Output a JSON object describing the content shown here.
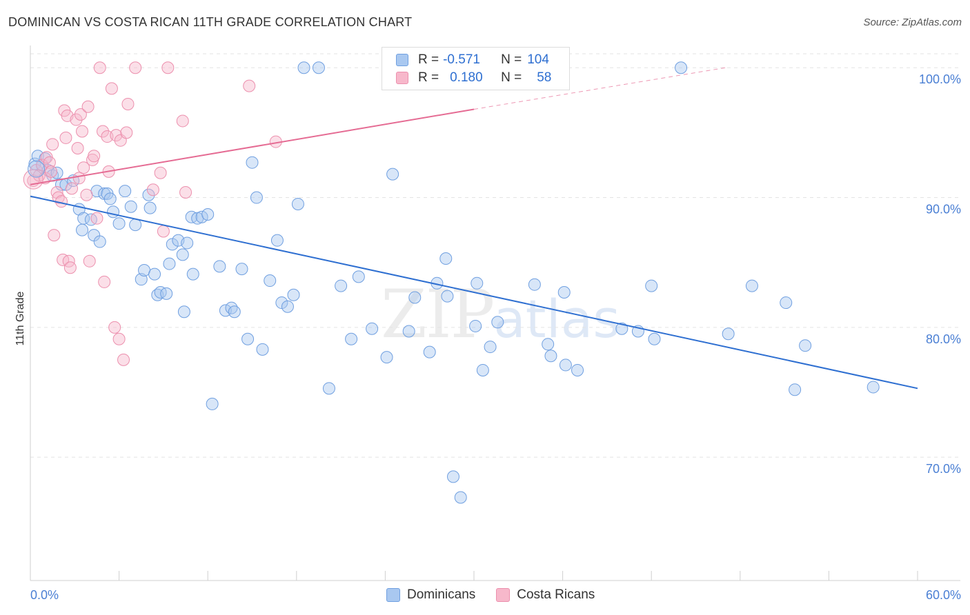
{
  "title": "DOMINICAN VS COSTA RICAN 11TH GRADE CORRELATION CHART",
  "source": "Source: ZipAtlas.com",
  "watermark": {
    "zip": "ZIP",
    "atlas": "atlas"
  },
  "legend": {
    "rows": [
      {
        "r_label": "R =",
        "r_value": "-0.571",
        "n_label": "N =",
        "n_value": "104",
        "color": "#a9c8f0"
      },
      {
        "r_label": "R =",
        "r_value": "0.180",
        "n_label": "N =",
        "n_value": "58",
        "color": "#f7b8cb"
      }
    ]
  },
  "bottom_legend": [
    {
      "label": "Dominicans",
      "color": "#a9c8f0"
    },
    {
      "label": "Costa Ricans",
      "color": "#f7b8cb"
    }
  ],
  "chart_data": {
    "type": "scatter",
    "title": "DOMINICAN VS COSTA RICAN 11TH GRADE CORRELATION CHART",
    "xlabel": "",
    "ylabel": "11th Grade",
    "xlim": [
      0,
      60
    ],
    "ylim": [
      60.5,
      101.5
    ],
    "x_tick_labels": [
      "0.0%",
      "60.0%"
    ],
    "y_ticks": [
      70,
      80,
      90,
      100
    ],
    "y_tick_labels": [
      "70.0%",
      "80.0%",
      "90.0%",
      "100.0%"
    ],
    "grid": true,
    "series": [
      {
        "name": "Dominicans",
        "color": "#a9c8f0",
        "stroke": "#6f9fe0",
        "trend_color": "#2e6fd1",
        "trend": {
          "x0": 0,
          "y0": 90.1,
          "x1": 60,
          "y1": 75.3
        },
        "points": [
          [
            0.3,
            92.6
          ],
          [
            0.5,
            93.2
          ],
          [
            0.8,
            92.5
          ],
          [
            1.0,
            93.0
          ],
          [
            1.2,
            92.1
          ],
          [
            1.5,
            91.7
          ],
          [
            1.8,
            91.9
          ],
          [
            2.1,
            91.0
          ],
          [
            2.4,
            91.0
          ],
          [
            2.9,
            91.3
          ],
          [
            3.3,
            89.1
          ],
          [
            3.5,
            87.5
          ],
          [
            3.6,
            88.4
          ],
          [
            4.1,
            88.3
          ],
          [
            4.3,
            87.1
          ],
          [
            4.5,
            90.5
          ],
          [
            4.7,
            86.6
          ],
          [
            5.0,
            90.3
          ],
          [
            5.2,
            90.3
          ],
          [
            5.4,
            89.9
          ],
          [
            5.6,
            88.9
          ],
          [
            6.0,
            88.0
          ],
          [
            6.4,
            90.5
          ],
          [
            6.8,
            89.3
          ],
          [
            7.1,
            87.9
          ],
          [
            7.5,
            83.7
          ],
          [
            7.7,
            84.4
          ],
          [
            8.0,
            90.2
          ],
          [
            8.1,
            89.2
          ],
          [
            8.4,
            84.1
          ],
          [
            8.6,
            82.5
          ],
          [
            8.8,
            82.7
          ],
          [
            9.2,
            82.6
          ],
          [
            9.4,
            84.9
          ],
          [
            9.6,
            86.4
          ],
          [
            10.0,
            86.7
          ],
          [
            10.3,
            85.6
          ],
          [
            10.4,
            81.2
          ],
          [
            10.6,
            86.5
          ],
          [
            10.9,
            88.5
          ],
          [
            11.0,
            84.1
          ],
          [
            11.3,
            88.4
          ],
          [
            11.6,
            88.5
          ],
          [
            12.0,
            88.7
          ],
          [
            12.3,
            74.1
          ],
          [
            12.8,
            84.7
          ],
          [
            13.2,
            81.3
          ],
          [
            13.6,
            81.5
          ],
          [
            13.8,
            81.2
          ],
          [
            14.3,
            84.5
          ],
          [
            14.7,
            79.1
          ],
          [
            15.0,
            92.7
          ],
          [
            15.3,
            90.0
          ],
          [
            15.7,
            78.3
          ],
          [
            16.2,
            83.6
          ],
          [
            16.7,
            86.7
          ],
          [
            17.0,
            81.9
          ],
          [
            17.4,
            81.6
          ],
          [
            17.8,
            82.5
          ],
          [
            18.1,
            89.5
          ],
          [
            18.5,
            100.0
          ],
          [
            19.5,
            100.0
          ],
          [
            20.2,
            75.3
          ],
          [
            21.0,
            83.2
          ],
          [
            21.7,
            79.1
          ],
          [
            22.2,
            83.9
          ],
          [
            23.1,
            79.9
          ],
          [
            24.1,
            77.7
          ],
          [
            24.5,
            91.8
          ],
          [
            25.6,
            79.7
          ],
          [
            26.0,
            82.3
          ],
          [
            27.0,
            78.1
          ],
          [
            27.5,
            83.4
          ],
          [
            28.1,
            85.3
          ],
          [
            28.2,
            82.4
          ],
          [
            28.6,
            68.5
          ],
          [
            29.1,
            66.9
          ],
          [
            30.1,
            80.1
          ],
          [
            30.2,
            83.4
          ],
          [
            30.6,
            76.7
          ],
          [
            31.1,
            78.5
          ],
          [
            31.6,
            80.4
          ],
          [
            34.1,
            83.3
          ],
          [
            35.0,
            78.7
          ],
          [
            35.2,
            77.8
          ],
          [
            36.1,
            82.7
          ],
          [
            36.2,
            77.1
          ],
          [
            37.0,
            76.7
          ],
          [
            40.0,
            79.9
          ],
          [
            41.1,
            79.7
          ],
          [
            42.0,
            83.2
          ],
          [
            42.2,
            79.1
          ],
          [
            44.0,
            100.0
          ],
          [
            47.2,
            79.5
          ],
          [
            48.8,
            83.2
          ],
          [
            51.1,
            81.9
          ],
          [
            51.7,
            75.2
          ],
          [
            52.4,
            78.6
          ],
          [
            57.0,
            75.4
          ]
        ]
      },
      {
        "name": "Costa Ricans",
        "color": "#f7b8cb",
        "stroke": "#ec8fad",
        "trend_color": "#e56b93",
        "trend": {
          "x0": 0,
          "y0": 91.0,
          "x1": 30,
          "y1": 96.8
        },
        "trend_dashed": {
          "x0": 30,
          "y0": 96.8,
          "x1": 47,
          "y1": 100.0
        },
        "points": [
          [
            0.2,
            91.3
          ],
          [
            0.4,
            92.1
          ],
          [
            0.6,
            91.7
          ],
          [
            0.8,
            92.5
          ],
          [
            1.0,
            91.5
          ],
          [
            1.1,
            93.1
          ],
          [
            1.3,
            92.7
          ],
          [
            1.4,
            92.0
          ],
          [
            1.5,
            94.1
          ],
          [
            1.6,
            87.1
          ],
          [
            1.8,
            90.4
          ],
          [
            1.9,
            90.0
          ],
          [
            2.1,
            89.7
          ],
          [
            2.2,
            85.2
          ],
          [
            2.3,
            96.7
          ],
          [
            2.4,
            94.6
          ],
          [
            2.5,
            96.3
          ],
          [
            2.6,
            85.1
          ],
          [
            2.7,
            84.6
          ],
          [
            2.8,
            90.7
          ],
          [
            3.1,
            96.0
          ],
          [
            3.2,
            93.8
          ],
          [
            3.3,
            91.5
          ],
          [
            3.4,
            96.4
          ],
          [
            3.5,
            95.1
          ],
          [
            3.6,
            92.3
          ],
          [
            3.8,
            90.2
          ],
          [
            3.9,
            97.0
          ],
          [
            4.0,
            85.1
          ],
          [
            4.2,
            92.9
          ],
          [
            4.3,
            93.2
          ],
          [
            4.5,
            88.4
          ],
          [
            4.7,
            100.0
          ],
          [
            4.9,
            95.1
          ],
          [
            5.0,
            83.5
          ],
          [
            5.2,
            94.7
          ],
          [
            5.3,
            92.0
          ],
          [
            5.5,
            98.4
          ],
          [
            5.7,
            80.0
          ],
          [
            5.8,
            94.8
          ],
          [
            6.0,
            79.1
          ],
          [
            6.1,
            94.4
          ],
          [
            6.3,
            77.5
          ],
          [
            6.5,
            95.0
          ],
          [
            6.6,
            97.2
          ],
          [
            7.1,
            100.0
          ],
          [
            8.3,
            90.6
          ],
          [
            8.8,
            91.9
          ],
          [
            9.0,
            87.4
          ],
          [
            9.3,
            100.0
          ],
          [
            10.3,
            95.9
          ],
          [
            10.5,
            90.4
          ],
          [
            14.8,
            98.6
          ],
          [
            16.6,
            94.3
          ]
        ]
      }
    ]
  }
}
